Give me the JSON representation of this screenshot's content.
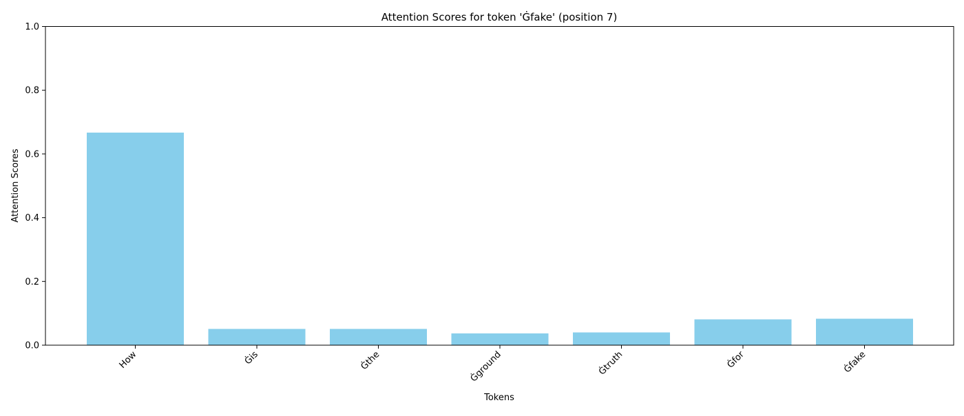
{
  "chart_data": {
    "type": "bar",
    "title": "Attention Scores for token 'Ġfake' (position 7)",
    "xlabel": "Tokens",
    "ylabel": "Attention Scores",
    "categories": [
      "How",
      "Ġis",
      "Ġthe",
      "Ġground",
      "Ġtruth",
      "Ġfor",
      "Ġfake"
    ],
    "values": [
      0.667,
      0.051,
      0.051,
      0.037,
      0.04,
      0.081,
      0.083
    ],
    "ylim": [
      0,
      1
    ],
    "yticks": [
      "0.0",
      "0.2",
      "0.4",
      "0.6",
      "0.8",
      "1.0"
    ],
    "bar_color": "#87CEEB",
    "grid": false,
    "legend": "none"
  }
}
